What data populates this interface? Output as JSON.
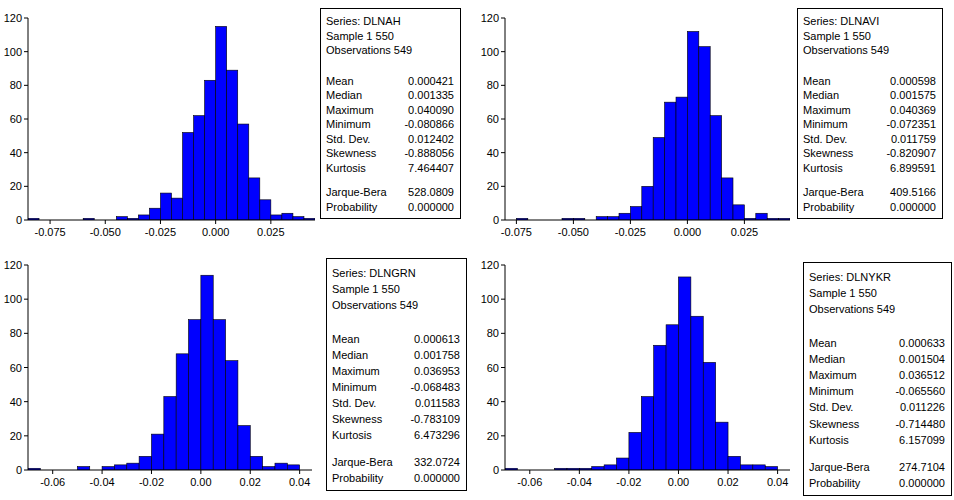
{
  "chart_data": [
    {
      "type": "histogram",
      "color": "#0000ff",
      "bins": [
        -0.085,
        -0.08,
        -0.075,
        -0.07,
        -0.065,
        -0.06,
        -0.055,
        -0.05,
        -0.045,
        -0.04,
        -0.035,
        -0.03,
        -0.025,
        -0.02,
        -0.015,
        -0.01,
        -0.005,
        0,
        0.005,
        0.01,
        0.015,
        0.02,
        0.025,
        0.03,
        0.035,
        0.04,
        0.045
      ],
      "values": [
        1,
        0,
        0,
        0,
        0,
        1,
        0,
        0,
        2,
        1,
        3,
        7,
        16,
        13,
        52,
        62,
        83,
        115,
        89,
        57,
        25,
        12,
        3,
        4,
        2,
        1
      ],
      "xlim": [
        -0.085,
        0.045
      ],
      "xticks": [
        -0.075,
        {
          "value": -0.05,
          "label": "-0.050"
        },
        -0.025,
        {
          "value": 0,
          "label": "0.000"
        },
        0.025
      ],
      "ylim": [
        0,
        120
      ],
      "yticks": [
        0,
        20,
        40,
        60,
        80,
        100,
        120
      ],
      "stats": {
        "header": [
          "Series: DLNAH",
          "Sample 1 550",
          "Observations 549"
        ],
        "rows": [
          {
            "label": "Mean",
            "value": "0.000421"
          },
          {
            "label": "Median",
            "value": "0.001335"
          },
          {
            "label": "Maximum",
            "value": "0.040090"
          },
          {
            "label": "Minimum",
            "value": "-0.080866"
          },
          {
            "label": "Std. Dev.",
            "value": "0.012402"
          },
          {
            "label": "Skewness",
            "value": "-0.888056"
          },
          {
            "label": "Kurtosis",
            "value": "7.464407"
          }
        ],
        "tests": [
          {
            "label": "Jarque-Bera",
            "value": "528.0809"
          },
          {
            "label": "Probability",
            "value": "0.000000"
          }
        ]
      }
    },
    {
      "type": "histogram",
      "color": "#0000ff",
      "bins": [
        -0.075,
        -0.07,
        -0.065,
        -0.06,
        -0.055,
        -0.05,
        -0.045,
        -0.04,
        -0.035,
        -0.03,
        -0.025,
        -0.02,
        -0.015,
        -0.01,
        -0.005,
        0,
        0.005,
        0.01,
        0.015,
        0.02,
        0.025,
        0.03,
        0.035,
        0.04,
        0.045
      ],
      "values": [
        1,
        0,
        0,
        0,
        1,
        1,
        0,
        2,
        2,
        4,
        8,
        20,
        49,
        70,
        73,
        112,
        103,
        62,
        25,
        9,
        1,
        4,
        1,
        1
      ],
      "xlim": [
        -0.08,
        0.045
      ],
      "xticks": [
        -0.075,
        {
          "value": -0.05,
          "label": "-0.050"
        },
        -0.025,
        {
          "value": 0,
          "label": "0.000"
        },
        0.025
      ],
      "ylim": [
        0,
        120
      ],
      "yticks": [
        0,
        20,
        40,
        60,
        80,
        100,
        120
      ],
      "stats": {
        "header": [
          "Series: DLNAVI",
          "Sample 1 550",
          "Observations 549"
        ],
        "rows": [
          {
            "label": "Mean",
            "value": "0.000598"
          },
          {
            "label": "Median",
            "value": "0.001575"
          },
          {
            "label": "Maximum",
            "value": "0.040369"
          },
          {
            "label": "Minimum",
            "value": "-0.072351"
          },
          {
            "label": "Std. Dev.",
            "value": "0.011759"
          },
          {
            "label": "Skewness",
            "value": "-0.820907"
          },
          {
            "label": "Kurtosis",
            "value": "6.899591"
          }
        ],
        "tests": [
          {
            "label": "Jarque-Bera",
            "value": "409.5166"
          },
          {
            "label": "Probability",
            "value": "0.000000"
          }
        ]
      }
    },
    {
      "type": "histogram",
      "color": "#0000ff",
      "bins": [
        -0.07,
        -0.065,
        -0.06,
        -0.055,
        -0.05,
        -0.045,
        -0.04,
        -0.035,
        -0.03,
        -0.025,
        -0.02,
        -0.015,
        -0.01,
        -0.005,
        0,
        0.005,
        0.01,
        0.015,
        0.02,
        0.025,
        0.03,
        0.035,
        0.04
      ],
      "values": [
        1,
        0,
        0,
        0,
        2,
        0,
        2,
        3,
        4,
        8,
        21,
        43,
        68,
        88,
        114,
        88,
        64,
        26,
        8,
        2,
        4,
        3
      ],
      "xlim": [
        -0.07,
        0.045
      ],
      "xticks": [
        -0.06,
        -0.04,
        -0.02,
        {
          "value": 0,
          "label": "0.00"
        },
        0.02,
        0.04
      ],
      "ylim": [
        0,
        120
      ],
      "yticks": [
        0,
        20,
        40,
        60,
        80,
        100,
        120
      ],
      "stats": {
        "header": [
          "Series: DLNGRN",
          "Sample 1 550",
          "Observations 549"
        ],
        "rows": [
          {
            "label": "Mean",
            "value": "0.000613"
          },
          {
            "label": "Median",
            "value": "0.001758"
          },
          {
            "label": "Maximum",
            "value": "0.036953"
          },
          {
            "label": "Minimum",
            "value": "-0.068483"
          },
          {
            "label": "Std. Dev.",
            "value": "0.011583"
          },
          {
            "label": "Skewness",
            "value": "-0.783109"
          },
          {
            "label": "Kurtosis",
            "value": "6.473296"
          }
        ],
        "tests": [
          {
            "label": "Jarque-Bera",
            "value": "332.0724"
          },
          {
            "label": "Probability",
            "value": "0.000000"
          }
        ]
      }
    },
    {
      "type": "histogram",
      "color": "#0000ff",
      "bins": [
        -0.07,
        -0.065,
        -0.06,
        -0.055,
        -0.05,
        -0.045,
        -0.04,
        -0.035,
        -0.03,
        -0.025,
        -0.02,
        -0.015,
        -0.01,
        -0.005,
        0,
        0.005,
        0.01,
        0.015,
        0.02,
        0.025,
        0.03,
        0.035,
        0.04
      ],
      "values": [
        1,
        0,
        0,
        0,
        1,
        1,
        1,
        2,
        3,
        7,
        22,
        43,
        73,
        85,
        113,
        90,
        63,
        28,
        8,
        3,
        3,
        2
      ],
      "xlim": [
        -0.07,
        0.045
      ],
      "xticks": [
        -0.06,
        -0.04,
        -0.02,
        {
          "value": 0,
          "label": "0.00"
        },
        0.02,
        0.04
      ],
      "ylim": [
        0,
        120
      ],
      "yticks": [
        0,
        20,
        40,
        60,
        80,
        100,
        120
      ],
      "stats": {
        "header": [
          "Series: DLNYKR",
          "Sample 1 550",
          "Observations 549"
        ],
        "rows": [
          {
            "label": "Mean",
            "value": "0.000633"
          },
          {
            "label": "Median",
            "value": "0.001504"
          },
          {
            "label": "Maximum",
            "value": "0.036512"
          },
          {
            "label": "Minimum",
            "value": "-0.065560"
          },
          {
            "label": "Std. Dev.",
            "value": "0.011226"
          },
          {
            "label": "Skewness",
            "value": "-0.714480"
          },
          {
            "label": "Kurtosis",
            "value": "6.157099"
          }
        ],
        "tests": [
          {
            "label": "Jarque-Bera",
            "value": "274.7104"
          },
          {
            "label": "Probability",
            "value": "0.000000"
          }
        ]
      }
    }
  ]
}
